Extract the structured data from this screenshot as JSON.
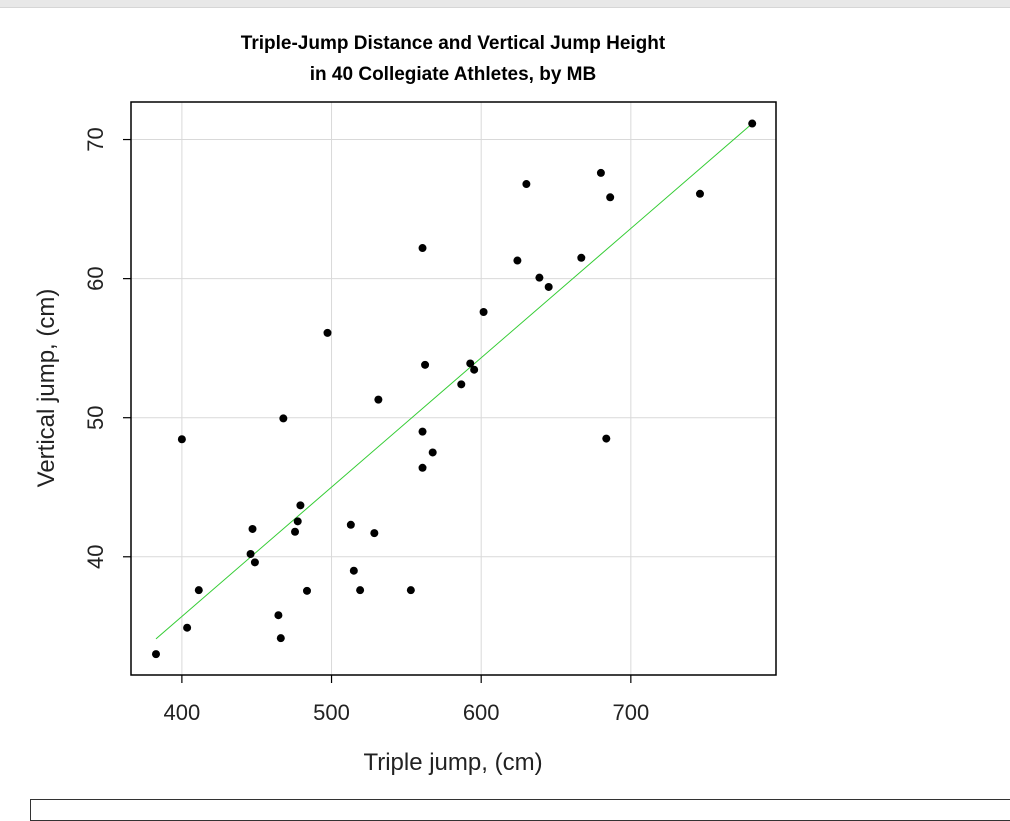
{
  "chart_data": {
    "type": "scatter",
    "title": "Triple-Jump Distance and Vertical Jump Height",
    "subtitle": "in 40 Collegiate Athletes, by MB",
    "xlabel": "Triple jump, (cm)",
    "ylabel": "Vertical jump, (cm)",
    "xlim": [
      366,
      797
    ],
    "ylim": [
      31.5,
      72.7
    ],
    "xticks": [
      "400",
      "500",
      "600",
      "700"
    ],
    "yticks": [
      "40",
      "50",
      "60",
      "70"
    ],
    "grid": true,
    "legend": "none",
    "colors": {
      "points": "#000000",
      "fit_line": "#33cc33",
      "grid": "#d9d9d9"
    },
    "points": [
      [
        382.7,
        33.0
      ],
      [
        400.0,
        48.45
      ],
      [
        403.5,
        34.9
      ],
      [
        411.3,
        37.6
      ],
      [
        445.9,
        40.2
      ],
      [
        447.2,
        42.0
      ],
      [
        448.8,
        39.6
      ],
      [
        464.5,
        35.8
      ],
      [
        466.1,
        34.15
      ],
      [
        467.8,
        49.95
      ],
      [
        475.6,
        41.8
      ],
      [
        477.4,
        42.55
      ],
      [
        479.2,
        43.7
      ],
      [
        483.6,
        37.55
      ],
      [
        497.3,
        56.1
      ],
      [
        512.9,
        42.3
      ],
      [
        514.9,
        39.0
      ],
      [
        519.1,
        37.6
      ],
      [
        528.6,
        41.7
      ],
      [
        531.3,
        51.3
      ],
      [
        553.0,
        37.6
      ],
      [
        560.8,
        62.2
      ],
      [
        560.8,
        49.0
      ],
      [
        560.8,
        46.4
      ],
      [
        562.5,
        53.8
      ],
      [
        567.6,
        47.5
      ],
      [
        586.7,
        52.4
      ],
      [
        592.7,
        53.9
      ],
      [
        595.3,
        53.45
      ],
      [
        601.6,
        57.6
      ],
      [
        624.2,
        61.3
      ],
      [
        630.2,
        66.8
      ],
      [
        638.9,
        60.07
      ],
      [
        645.1,
        59.4
      ],
      [
        666.9,
        61.5
      ],
      [
        680.0,
        67.6
      ],
      [
        683.6,
        48.5
      ],
      [
        686.2,
        65.85
      ],
      [
        746.2,
        66.1
      ],
      [
        781.1,
        71.15
      ]
    ],
    "fit_line": {
      "x": [
        382.7,
        781.1
      ],
      "y": [
        34.1,
        71.15
      ]
    }
  }
}
